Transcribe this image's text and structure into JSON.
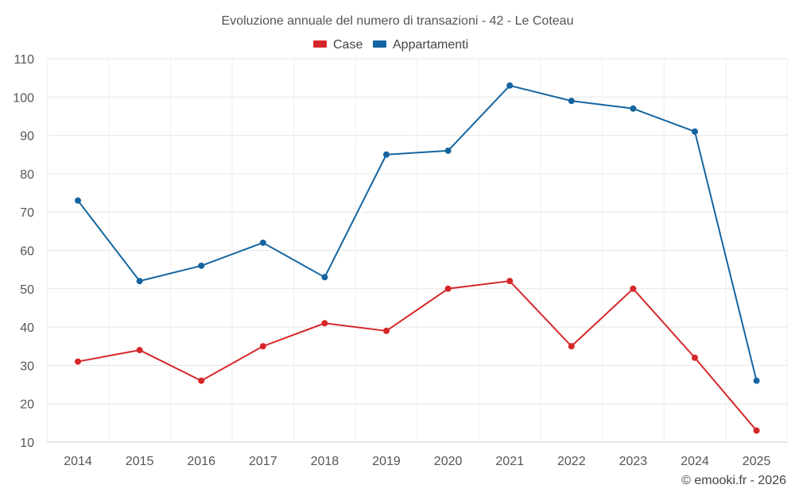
{
  "chart_data": {
    "type": "line",
    "title": "Evoluzione annuale del numero di transazioni - 42 - Le Coteau",
    "categories": [
      "2014",
      "2015",
      "2016",
      "2017",
      "2018",
      "2019",
      "2020",
      "2021",
      "2022",
      "2023",
      "2024",
      "2025"
    ],
    "series": [
      {
        "name": "Case",
        "color": "#d62728",
        "values": [
          31,
          34,
          26,
          35,
          41,
          39,
          50,
          52,
          35,
          50,
          32,
          13
        ]
      },
      {
        "name": "Appartamenti",
        "color": "#1565a0",
        "values": [
          73,
          52,
          56,
          62,
          53,
          85,
          86,
          103,
          99,
          97,
          91,
          26
        ]
      }
    ],
    "ylim": [
      10,
      110
    ],
    "yticks": [
      10,
      20,
      30,
      40,
      50,
      60,
      70,
      80,
      90,
      100,
      110
    ],
    "xlabel": "",
    "ylabel": "",
    "grid": true,
    "legend": "top-center"
  },
  "credit": "© emooki.fr - 2026"
}
